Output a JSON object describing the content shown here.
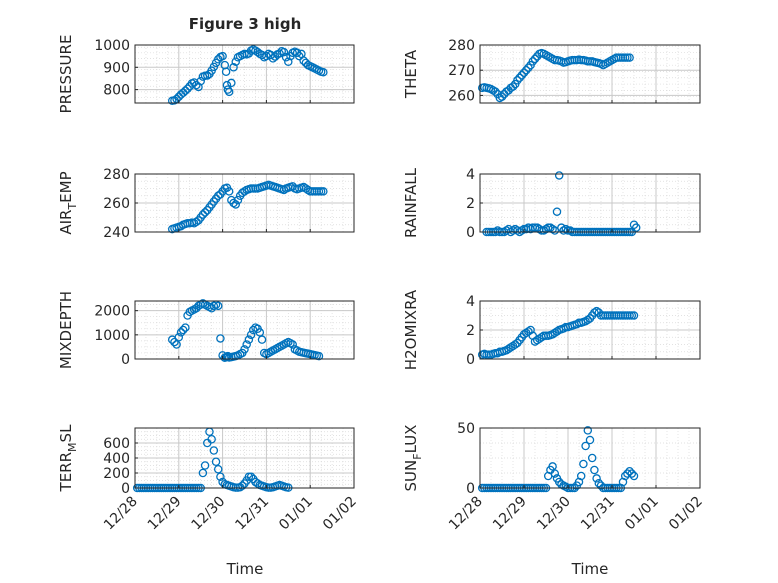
{
  "figure": {
    "title": "Figure 3 high",
    "x_label": "Time",
    "x_tick_labels": [
      "12/28",
      "12/29",
      "12/30",
      "12/31",
      "01/01",
      "01/02"
    ]
  },
  "colors": {
    "marker": "#0072BD",
    "axis": "#262626",
    "grid": "#d9d9d9"
  },
  "chart_data": [
    {
      "type": "scatter",
      "ylabel": "PRESSURE",
      "ylim": [
        740,
        1000
      ],
      "yticks": [
        800,
        900,
        1000
      ],
      "grid": true,
      "x_is_time": true,
      "xlim": [
        "12/28",
        "01/02"
      ],
      "x": [
        0.85,
        0.9,
        0.95,
        1.0,
        1.05,
        1.1,
        1.15,
        1.2,
        1.25,
        1.3,
        1.35,
        1.4,
        1.45,
        1.5,
        1.55,
        1.6,
        1.65,
        1.7,
        1.75,
        1.8,
        1.85,
        1.9,
        1.95,
        2.0,
        2.05,
        2.08,
        2.1,
        2.12,
        2.15,
        2.2,
        2.25,
        2.3,
        2.35,
        2.4,
        2.45,
        2.5,
        2.55,
        2.6,
        2.65,
        2.7,
        2.75,
        2.8,
        2.85,
        2.9,
        2.95,
        3.0,
        3.05,
        3.1,
        3.15,
        3.2,
        3.25,
        3.3,
        3.35,
        3.4,
        3.45,
        3.5,
        3.55,
        3.6,
        3.65,
        3.7,
        3.75,
        3.8,
        3.85,
        3.9,
        3.95,
        4.0,
        4.05,
        4.1,
        4.15,
        4.2,
        4.25,
        4.3
      ],
      "y": [
        750,
        752,
        758,
        768,
        778,
        786,
        795,
        804,
        815,
        828,
        832,
        820,
        812,
        838,
        858,
        862,
        863,
        870,
        885,
        902,
        920,
        936,
        946,
        950,
        910,
        880,
        820,
        800,
        790,
        830,
        900,
        925,
        945,
        950,
        955,
        960,
        958,
        962,
        975,
        980,
        975,
        968,
        960,
        955,
        945,
        950,
        960,
        955,
        940,
        948,
        958,
        962,
        972,
        968,
        945,
        925,
        950,
        965,
        970,
        965,
        950,
        960,
        930,
        920,
        910,
        905,
        900,
        895,
        890,
        885,
        880,
        878
      ]
    },
    {
      "type": "scatter",
      "ylabel": "THETA",
      "ylim": [
        257,
        280
      ],
      "yticks": [
        260,
        270,
        280
      ],
      "grid": true,
      "x_is_time": true,
      "xlim": [
        "12/28",
        "01/02"
      ],
      "x": [
        0.05,
        0.1,
        0.15,
        0.2,
        0.25,
        0.3,
        0.35,
        0.4,
        0.45,
        0.5,
        0.55,
        0.6,
        0.65,
        0.7,
        0.75,
        0.8,
        0.85,
        0.9,
        0.95,
        1.0,
        1.05,
        1.1,
        1.15,
        1.2,
        1.25,
        1.3,
        1.35,
        1.4,
        1.45,
        1.5,
        1.55,
        1.6,
        1.65,
        1.7,
        1.75,
        1.8,
        1.85,
        1.9,
        1.95,
        2.0,
        2.05,
        2.1,
        2.15,
        2.2,
        2.25,
        2.3,
        2.35,
        2.4,
        2.45,
        2.5,
        2.55,
        2.6,
        2.65,
        2.7,
        2.75,
        2.8,
        2.85,
        2.9,
        2.95,
        3.0,
        3.05,
        3.1,
        3.15,
        3.2,
        3.25,
        3.3,
        3.35,
        3.4
      ],
      "y": [
        263,
        263.2,
        263,
        262.8,
        262.5,
        262,
        261.5,
        260.5,
        259,
        259.5,
        260.5,
        261.5,
        262,
        263,
        263.5,
        264.5,
        266,
        267,
        268,
        269,
        270,
        271,
        272,
        273.5,
        274.5,
        275.5,
        276.5,
        276.8,
        276.5,
        276,
        275.5,
        275,
        274.5,
        274,
        274,
        273.8,
        273.5,
        273,
        273.2,
        273.5,
        273.8,
        274,
        274,
        274,
        274.2,
        274,
        274,
        273.8,
        273.5,
        273.5,
        273.5,
        273.2,
        273,
        272.8,
        272.5,
        272,
        272.5,
        273,
        273.5,
        274,
        274.5,
        275,
        275,
        275,
        275,
        275,
        275,
        275
      ]
    },
    {
      "type": "scatter",
      "ylabel": "AIR_TEMP",
      "ylim": [
        240,
        280
      ],
      "yticks": [
        240,
        260,
        280
      ],
      "grid": true,
      "x_is_time": true,
      "xlim": [
        "12/28",
        "01/02"
      ],
      "x": [
        0.85,
        0.9,
        0.95,
        1.0,
        1.05,
        1.1,
        1.15,
        1.2,
        1.25,
        1.3,
        1.35,
        1.4,
        1.45,
        1.5,
        1.55,
        1.6,
        1.65,
        1.7,
        1.75,
        1.8,
        1.85,
        1.9,
        1.95,
        2.0,
        2.05,
        2.1,
        2.15,
        2.2,
        2.25,
        2.3,
        2.35,
        2.4,
        2.45,
        2.5,
        2.55,
        2.6,
        2.65,
        2.7,
        2.75,
        2.8,
        2.85,
        2.9,
        2.95,
        3.0,
        3.05,
        3.1,
        3.15,
        3.2,
        3.25,
        3.3,
        3.35,
        3.4,
        3.45,
        3.5,
        3.55,
        3.6,
        3.65,
        3.7,
        3.75,
        3.8,
        3.85,
        3.9,
        3.95,
        4.0,
        4.05,
        4.1,
        4.15,
        4.2,
        4.25,
        4.3
      ],
      "y": [
        242,
        242.5,
        243,
        243.5,
        244,
        245,
        245.5,
        246,
        246,
        246.5,
        246,
        247,
        248,
        250,
        252,
        253.5,
        255,
        257,
        259,
        261,
        263,
        265,
        266,
        268,
        270,
        270.5,
        268,
        262,
        260,
        259,
        262,
        265,
        267,
        268,
        269,
        269.5,
        270,
        270,
        270,
        270,
        270.5,
        271,
        271.5,
        272,
        272.5,
        272,
        271.5,
        271,
        270.5,
        270,
        269.5,
        269,
        270,
        270.5,
        271,
        271.5,
        270,
        269.5,
        270,
        270.5,
        271,
        270,
        269,
        268,
        268,
        268,
        268,
        268,
        268,
        268
      ]
    },
    {
      "type": "scatter",
      "ylabel": "RAINFALL",
      "ylim": [
        0,
        4
      ],
      "yticks": [
        0,
        2,
        4
      ],
      "grid": true,
      "x_is_time": true,
      "xlim": [
        "12/28",
        "01/02"
      ],
      "x": [
        0.15,
        0.2,
        0.25,
        0.3,
        0.35,
        0.4,
        0.45,
        0.5,
        0.55,
        0.6,
        0.65,
        0.7,
        0.75,
        0.8,
        0.85,
        0.9,
        0.95,
        1.0,
        1.05,
        1.1,
        1.15,
        1.2,
        1.25,
        1.3,
        1.35,
        1.4,
        1.45,
        1.5,
        1.55,
        1.6,
        1.65,
        1.7,
        1.75,
        1.8,
        1.85,
        1.9,
        1.95,
        2.0,
        2.05,
        2.1,
        2.15,
        2.2,
        2.25,
        2.3,
        2.35,
        2.4,
        2.45,
        2.5,
        2.55,
        2.6,
        2.65,
        2.7,
        2.75,
        2.8,
        2.85,
        2.9,
        2.95,
        3.0,
        3.05,
        3.1,
        3.15,
        3.2,
        3.25,
        3.3,
        3.35,
        3.4,
        3.45,
        3.5,
        3.55
      ],
      "y": [
        0,
        0,
        0,
        0,
        0,
        0.1,
        0,
        0,
        0,
        0.1,
        0.2,
        0,
        0.1,
        0.2,
        0.1,
        0,
        0.1,
        0.2,
        0.2,
        0.3,
        0.2,
        0.3,
        0.3,
        0.3,
        0.2,
        0.1,
        0.1,
        0.2,
        0.3,
        0.3,
        0.2,
        0.1,
        1.4,
        3.9,
        0.3,
        0.1,
        0.2,
        0.1,
        0.1,
        0,
        0,
        0,
        0,
        0,
        0,
        0,
        0,
        0,
        0,
        0,
        0,
        0,
        0,
        0,
        0,
        0,
        0,
        0,
        0,
        0,
        0,
        0,
        0,
        0,
        0,
        0,
        0,
        0.5,
        0.3
      ]
    },
    {
      "type": "scatter",
      "ylabel": "MIXDEPTH",
      "ylim": [
        0,
        2400
      ],
      "yticks": [
        0,
        1000,
        2000
      ],
      "grid": true,
      "x_is_time": true,
      "xlim": [
        "12/28",
        "01/02"
      ],
      "x": [
        0.85,
        0.9,
        0.95,
        1.0,
        1.05,
        1.1,
        1.15,
        1.2,
        1.25,
        1.3,
        1.35,
        1.4,
        1.45,
        1.5,
        1.55,
        1.6,
        1.65,
        1.7,
        1.75,
        1.8,
        1.85,
        1.9,
        1.95,
        2.0,
        2.05,
        2.08,
        2.1,
        2.12,
        2.15,
        2.2,
        2.25,
        2.3,
        2.35,
        2.4,
        2.45,
        2.5,
        2.55,
        2.6,
        2.65,
        2.7,
        2.75,
        2.8,
        2.85,
        2.9,
        2.95,
        3.0,
        3.05,
        3.1,
        3.15,
        3.2,
        3.25,
        3.3,
        3.35,
        3.4,
        3.45,
        3.5,
        3.55,
        3.6,
        3.65,
        3.7,
        3.75,
        3.8,
        3.85,
        3.9,
        3.95,
        4.0,
        4.05,
        4.1,
        4.15,
        4.2
      ],
      "y": [
        800,
        700,
        600,
        900,
        1100,
        1200,
        1300,
        1800,
        1950,
        2000,
        2050,
        2100,
        2200,
        2250,
        2300,
        2250,
        2200,
        2150,
        2100,
        2200,
        2250,
        2200,
        850,
        150,
        50,
        80,
        100,
        120,
        60,
        80,
        100,
        120,
        150,
        200,
        250,
        400,
        600,
        800,
        1000,
        1200,
        1300,
        1250,
        1100,
        800,
        250,
        200,
        250,
        300,
        350,
        400,
        450,
        500,
        550,
        600,
        650,
        700,
        650,
        600,
        400,
        350,
        300,
        280,
        260,
        240,
        220,
        200,
        180,
        160,
        140,
        120
      ]
    },
    {
      "type": "scatter",
      "ylabel": "H2OMIXRA",
      "ylim": [
        0,
        4
      ],
      "yticks": [
        0,
        2,
        4
      ],
      "grid": true,
      "x_is_time": true,
      "xlim": [
        "12/28",
        "01/02"
      ],
      "x": [
        0.05,
        0.1,
        0.15,
        0.2,
        0.25,
        0.3,
        0.35,
        0.4,
        0.45,
        0.5,
        0.55,
        0.6,
        0.65,
        0.7,
        0.75,
        0.8,
        0.85,
        0.9,
        0.95,
        1.0,
        1.05,
        1.1,
        1.15,
        1.2,
        1.25,
        1.3,
        1.35,
        1.4,
        1.45,
        1.5,
        1.55,
        1.6,
        1.65,
        1.7,
        1.75,
        1.8,
        1.85,
        1.9,
        1.95,
        2.0,
        2.05,
        2.1,
        2.15,
        2.2,
        2.25,
        2.3,
        2.35,
        2.4,
        2.45,
        2.5,
        2.55,
        2.6,
        2.65,
        2.7,
        2.75,
        2.8,
        2.85,
        2.9,
        2.95,
        3.0,
        3.05,
        3.1,
        3.15,
        3.2,
        3.25,
        3.3,
        3.35,
        3.4,
        3.45,
        3.5
      ],
      "y": [
        0.3,
        0.35,
        0.3,
        0.3,
        0.3,
        0.35,
        0.4,
        0.4,
        0.5,
        0.5,
        0.55,
        0.6,
        0.7,
        0.8,
        0.9,
        1.0,
        1.1,
        1.3,
        1.5,
        1.7,
        1.8,
        1.9,
        2.0,
        1.6,
        1.2,
        1.3,
        1.4,
        1.5,
        1.6,
        1.6,
        1.6,
        1.65,
        1.7,
        1.8,
        1.9,
        2.0,
        2.05,
        2.1,
        2.2,
        2.2,
        2.25,
        2.3,
        2.35,
        2.4,
        2.5,
        2.5,
        2.55,
        2.6,
        2.7,
        2.8,
        3.0,
        3.2,
        3.3,
        3.2,
        3.0,
        3.0,
        3.0,
        3.0,
        3.0,
        3.0,
        3.0,
        3.0,
        3.0,
        3.0,
        3.0,
        3.0,
        3.0,
        3.0,
        3.0,
        3.0
      ]
    },
    {
      "type": "scatter",
      "ylabel": "TERR_MSL",
      "ylim": [
        0,
        800
      ],
      "yticks": [
        0,
        200,
        400,
        600
      ],
      "grid": true,
      "x_is_time": true,
      "xlim": [
        "12/28",
        "01/02"
      ],
      "x": [
        0.05,
        0.1,
        0.15,
        0.2,
        0.25,
        0.3,
        0.35,
        0.4,
        0.45,
        0.5,
        0.55,
        0.6,
        0.65,
        0.7,
        0.75,
        0.8,
        0.85,
        0.9,
        0.95,
        1.0,
        1.05,
        1.1,
        1.15,
        1.2,
        1.25,
        1.3,
        1.35,
        1.4,
        1.45,
        1.5,
        1.55,
        1.6,
        1.65,
        1.7,
        1.75,
        1.8,
        1.85,
        1.9,
        1.95,
        2.0,
        2.05,
        2.1,
        2.15,
        2.2,
        2.25,
        2.3,
        2.35,
        2.4,
        2.45,
        2.5,
        2.55,
        2.6,
        2.65,
        2.7,
        2.75,
        2.8,
        2.85,
        2.9,
        2.95,
        3.0,
        3.05,
        3.1,
        3.15,
        3.2,
        3.25,
        3.3,
        3.35,
        3.4,
        3.45,
        3.5
      ],
      "y": [
        0,
        0,
        0,
        0,
        0,
        0,
        0,
        0,
        0,
        0,
        0,
        0,
        0,
        0,
        0,
        0,
        0,
        0,
        0,
        0,
        0,
        0,
        0,
        0,
        0,
        0,
        0,
        0,
        0,
        0,
        200,
        300,
        600,
        750,
        650,
        500,
        350,
        250,
        150,
        80,
        50,
        40,
        30,
        20,
        10,
        5,
        5,
        10,
        30,
        60,
        100,
        150,
        150,
        120,
        80,
        60,
        40,
        30,
        20,
        10,
        5,
        5,
        10,
        20,
        30,
        40,
        30,
        20,
        10,
        5
      ]
    },
    {
      "type": "scatter",
      "ylabel": "SUN_FLUX",
      "ylim": [
        0,
        50
      ],
      "yticks": [
        0,
        50
      ],
      "grid": true,
      "x_is_time": true,
      "xlim": [
        "12/28",
        "01/02"
      ],
      "x": [
        0.05,
        0.1,
        0.15,
        0.2,
        0.25,
        0.3,
        0.35,
        0.4,
        0.45,
        0.5,
        0.55,
        0.6,
        0.65,
        0.7,
        0.75,
        0.8,
        0.85,
        0.9,
        0.95,
        1.0,
        1.05,
        1.1,
        1.15,
        1.2,
        1.25,
        1.3,
        1.35,
        1.4,
        1.45,
        1.5,
        1.55,
        1.6,
        1.65,
        1.7,
        1.75,
        1.8,
        1.85,
        1.9,
        1.95,
        2.0,
        2.05,
        2.1,
        2.15,
        2.2,
        2.25,
        2.3,
        2.35,
        2.4,
        2.45,
        2.5,
        2.55,
        2.6,
        2.65,
        2.7,
        2.75,
        2.8,
        2.85,
        2.9,
        2.95,
        3.0,
        3.05,
        3.1,
        3.15,
        3.2,
        3.25,
        3.3,
        3.35,
        3.4,
        3.45,
        3.5
      ],
      "y": [
        0,
        0,
        0,
        0,
        0,
        0,
        0,
        0,
        0,
        0,
        0,
        0,
        0,
        0,
        0,
        0,
        0,
        0,
        0,
        0,
        0,
        0,
        0,
        0,
        0,
        0,
        0,
        0,
        0,
        0,
        10,
        15,
        18,
        12,
        8,
        5,
        3,
        2,
        1,
        0,
        0,
        0,
        0,
        2,
        5,
        10,
        20,
        35,
        48,
        40,
        25,
        15,
        8,
        4,
        2,
        0,
        0,
        0,
        0,
        0,
        0,
        0,
        0,
        0,
        5,
        10,
        12,
        14,
        12,
        10
      ]
    }
  ]
}
